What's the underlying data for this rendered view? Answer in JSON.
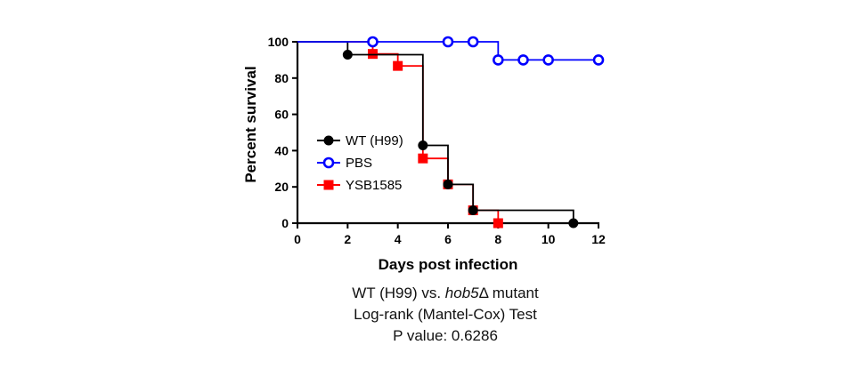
{
  "chart_data": {
    "type": "line",
    "subtype": "kaplan-meier-step",
    "xlabel": "Days post infection",
    "ylabel": "Percent survival",
    "xlim": [
      0,
      12
    ],
    "ylim": [
      0,
      100
    ],
    "x_ticks": [
      0,
      2,
      4,
      6,
      8,
      10,
      12
    ],
    "y_ticks": [
      0,
      20,
      40,
      60,
      80,
      100
    ],
    "grid": false,
    "legend_position": "left-center",
    "series": [
      {
        "name": "WT (H99)",
        "color": "#000000",
        "marker": "filled-circle",
        "steps": [
          [
            0,
            100
          ],
          [
            2,
            92.9
          ],
          [
            5,
            42.9
          ],
          [
            6,
            21.4
          ],
          [
            7,
            7.1
          ],
          [
            11,
            0
          ]
        ],
        "markers": [
          [
            2,
            92.9
          ],
          [
            5,
            42.9
          ],
          [
            6,
            21.4
          ],
          [
            7,
            7.1
          ],
          [
            11,
            0
          ]
        ]
      },
      {
        "name": "PBS",
        "color": "#0000ff",
        "marker": "open-circle",
        "steps": [
          [
            0,
            100
          ],
          [
            8,
            90
          ],
          [
            12,
            90
          ]
        ],
        "markers": [
          [
            3,
            100
          ],
          [
            6,
            100
          ],
          [
            7,
            100
          ],
          [
            8,
            90
          ],
          [
            9,
            90
          ],
          [
            10,
            90
          ],
          [
            12,
            90
          ]
        ]
      },
      {
        "name": "YSB1585",
        "color": "#ff0000",
        "marker": "filled-square",
        "steps": [
          [
            0,
            100
          ],
          [
            3,
            93.3
          ],
          [
            4,
            86.7
          ],
          [
            5,
            35.7
          ],
          [
            6,
            21.4
          ],
          [
            7,
            7.1
          ],
          [
            8,
            0
          ]
        ],
        "markers": [
          [
            3,
            93.3
          ],
          [
            4,
            86.7
          ],
          [
            5,
            35.7
          ],
          [
            6,
            21.4
          ],
          [
            7,
            7.1
          ],
          [
            8,
            0
          ]
        ]
      }
    ]
  },
  "caption": {
    "line1_prefix": "WT (H99) vs. ",
    "line1_italic": "hob5",
    "line1_suffix": "Δ mutant",
    "line2": "Log-rank (Mantel-Cox) Test",
    "line3": "P value: 0.6286"
  }
}
